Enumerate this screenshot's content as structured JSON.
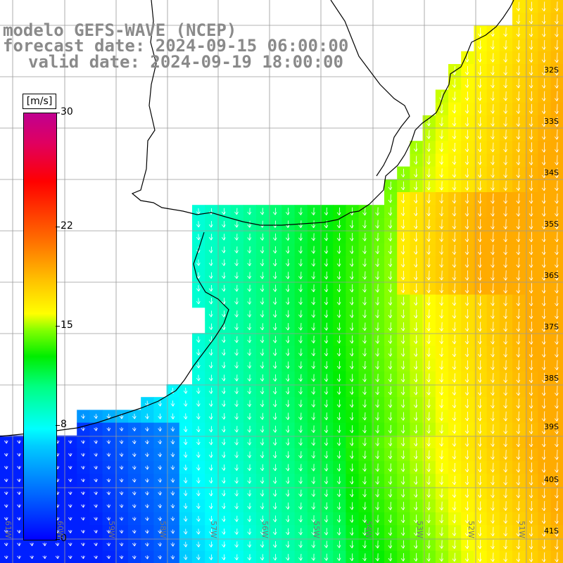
{
  "header": {
    "line1": "modelo GEFS-WAVE (NCEP)",
    "line2": "forecast date: 2024-09-15 06:00:00",
    "line3": "valid date: 2024-09-19 18:00:00"
  },
  "colorbar": {
    "unit": "[m/s]",
    "ticks": [
      {
        "label": "30",
        "value": 30
      },
      {
        "label": "22",
        "value": 22
      },
      {
        "label": "15",
        "value": 15
      },
      {
        "label": "8",
        "value": 8
      },
      {
        "label": "0",
        "value": 0
      }
    ],
    "min": 0,
    "max": 30
  },
  "lat_labels": [
    "32S",
    "33S",
    "34S",
    "35S",
    "36S",
    "37S",
    "38S",
    "39S",
    "40S",
    "41S"
  ],
  "lon_labels": [
    "61W",
    "60W",
    "59W",
    "58W",
    "57W",
    "56W",
    "55W",
    "54W",
    "53W",
    "52W",
    "51W"
  ],
  "colors": {
    "title": "#8a8a8a",
    "land": "#ffffff",
    "grid": "#9a9a9a",
    "coast": "#000000",
    "arrow": "#ffffff"
  },
  "field": {
    "variable": "wind speed",
    "units": "m/s",
    "typical_range": [
      1,
      19
    ]
  }
}
